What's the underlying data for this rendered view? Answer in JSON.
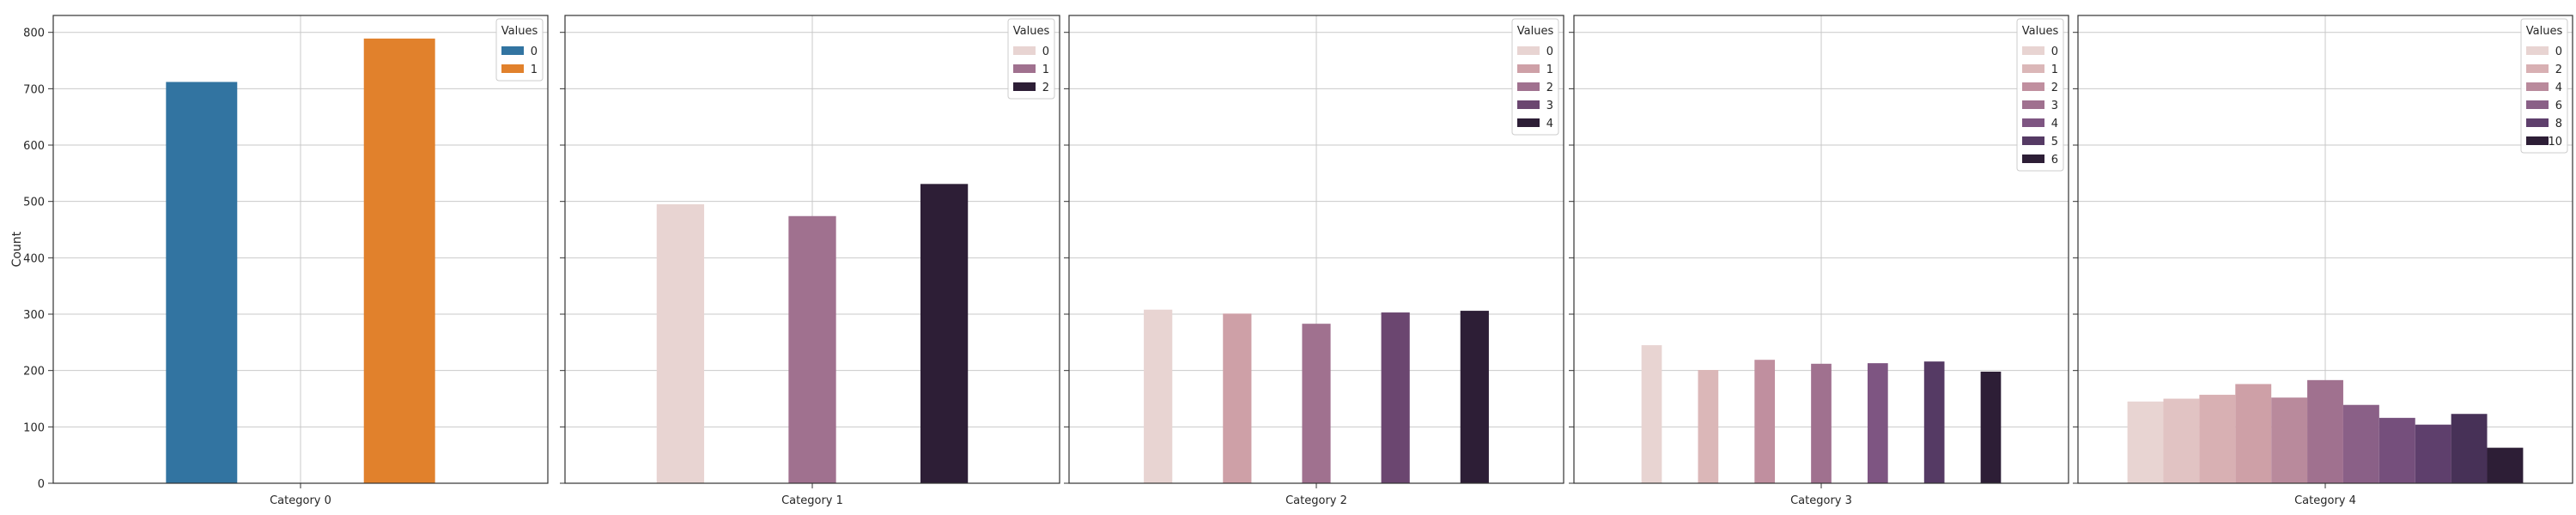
{
  "chart_data": {
    "type": "bar",
    "ylabel": "Count",
    "ylim": [
      0,
      830
    ],
    "yticks": [
      0,
      100,
      200,
      300,
      400,
      500,
      600,
      700,
      800
    ],
    "grid": true,
    "legend_placement": "top-right",
    "legend_title": "Values",
    "panels": [
      {
        "category": "Category 0",
        "groups": [
          "0",
          "1"
        ],
        "values": [
          712,
          789
        ],
        "colors": [
          "#3274a1",
          "#e1812c"
        ],
        "legend": [
          "0",
          "1"
        ]
      },
      {
        "category": "Category 1",
        "groups": [
          "0",
          "1",
          "2"
        ],
        "values": [
          495,
          474,
          531
        ],
        "colors": [
          "#e8d4d2",
          "#a0718f",
          "#2d1e36"
        ],
        "legend": [
          "0",
          "1",
          "2"
        ]
      },
      {
        "category": "Category 2",
        "groups": [
          "0",
          "1",
          "2",
          "3",
          "4"
        ],
        "values": [
          308,
          301,
          283,
          303,
          306
        ],
        "colors": [
          "#e8d4d2",
          "#cea0a7",
          "#a0718f",
          "#6b4670",
          "#2d1e36"
        ],
        "legend": [
          "0",
          "1",
          "2",
          "3",
          "4"
        ]
      },
      {
        "category": "Category 3",
        "groups": [
          "0",
          "1",
          "2",
          "3",
          "4",
          "5",
          "6"
        ],
        "values": [
          245,
          201,
          219,
          212,
          213,
          216,
          198
        ],
        "colors": [
          "#e8d4d2",
          "#dbb7b8",
          "#c08f9f",
          "#a0718f",
          "#7e5582",
          "#553a64",
          "#2d1e36"
        ],
        "legend": [
          "0",
          "1",
          "2",
          "3",
          "4",
          "5",
          "6"
        ]
      },
      {
        "category": "Category 4",
        "groups": [
          "0",
          "1",
          "2",
          "3",
          "4",
          "5",
          "6",
          "7",
          "8",
          "9",
          "10"
        ],
        "values": [
          145,
          150,
          157,
          176,
          152,
          183,
          139,
          116,
          104,
          123,
          63
        ],
        "colors": [
          "#e8d4d2",
          "#e1c3c3",
          "#d8b0b3",
          "#cea0a7",
          "#b98a9c",
          "#a0718f",
          "#8a6087",
          "#754f7c",
          "#5e3f6c",
          "#473157",
          "#2d1e36"
        ],
        "legend": [
          "0",
          "2",
          "4",
          "6",
          "8",
          "10"
        ],
        "legend_colors": [
          "#e8d4d2",
          "#d8b0b3",
          "#b98a9c",
          "#8a6087",
          "#5e3f6c",
          "#2d1e36"
        ]
      }
    ]
  }
}
